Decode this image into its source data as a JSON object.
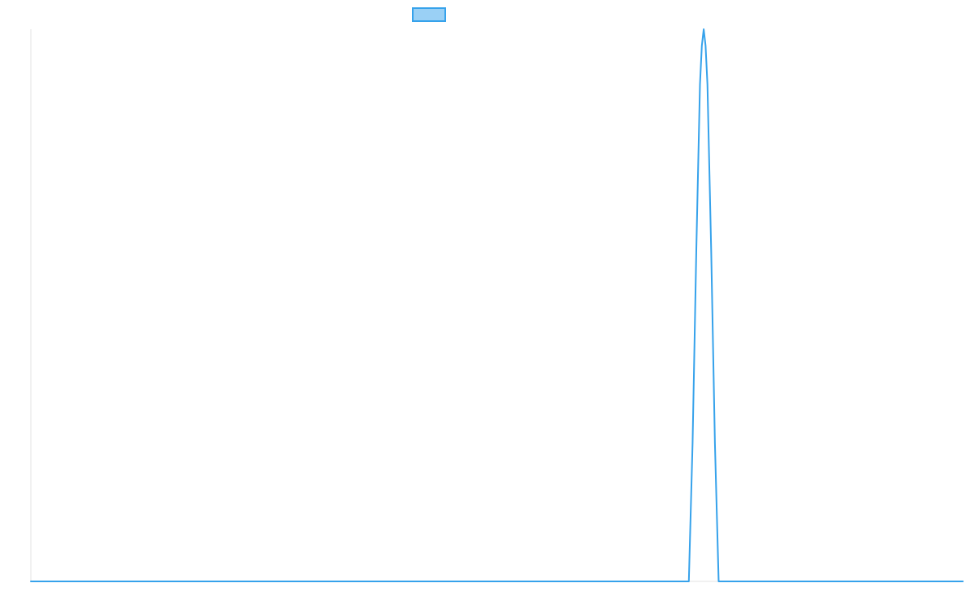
{
  "chart_data": {
    "type": "line",
    "title": "",
    "xlabel": "",
    "ylabel": "",
    "xlim": [
      0,
      1000
    ],
    "ylim": [
      0,
      1
    ],
    "grid": false,
    "legend": {
      "position": "top-center",
      "show_label": false
    },
    "series": [
      {
        "color": "#36a2eb",
        "fill": "#9ad0f5",
        "points": [
          [
            0,
            0
          ],
          [
            100,
            0
          ],
          [
            200,
            0
          ],
          [
            300,
            0
          ],
          [
            400,
            0
          ],
          [
            500,
            0
          ],
          [
            600,
            0
          ],
          [
            700,
            0
          ],
          [
            706,
            0
          ],
          [
            710,
            0.25
          ],
          [
            714,
            0.6
          ],
          [
            718,
            0.9
          ],
          [
            720,
            0.97
          ],
          [
            722,
            1.0
          ],
          [
            724,
            0.97
          ],
          [
            726,
            0.9
          ],
          [
            730,
            0.6
          ],
          [
            734,
            0.25
          ],
          [
            738,
            0
          ],
          [
            746,
            0
          ],
          [
            800,
            0
          ],
          [
            900,
            0
          ],
          [
            1000,
            0
          ]
        ]
      }
    ]
  }
}
